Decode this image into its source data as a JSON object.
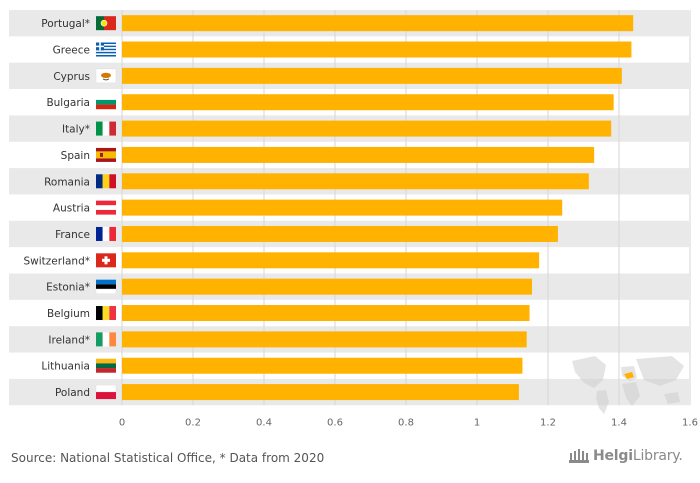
{
  "chart_data": {
    "type": "bar",
    "orientation": "horizontal",
    "categories": [
      "Portugal*",
      "Greece",
      "Cyprus",
      "Bulgaria",
      "Italy*",
      "Spain",
      "Romania",
      "Austria",
      "France",
      "Switzerland*",
      "Estonia*",
      "Belgium",
      "Ireland*",
      "Lithuania",
      "Poland"
    ],
    "values": [
      1.44,
      1.435,
      1.408,
      1.385,
      1.378,
      1.33,
      1.315,
      1.24,
      1.228,
      1.175,
      1.155,
      1.148,
      1.14,
      1.128,
      1.118
    ],
    "xlim": [
      0,
      1.6
    ],
    "x_ticks": [
      "0",
      "0.2",
      "0.4",
      "0.6",
      "0.8",
      "1",
      "1.2",
      "1.4",
      "1.6"
    ],
    "bar_color": "#FFB300",
    "grid": true,
    "category_band_color": "#E9E9E9",
    "flag_icons": [
      "portugal-flag-icon",
      "greece-flag-icon",
      "cyprus-flag-icon",
      "bulgaria-flag-icon",
      "italy-flag-icon",
      "spain-flag-icon",
      "romania-flag-icon",
      "austria-flag-icon",
      "france-flag-icon",
      "switzerland-flag-icon",
      "estonia-flag-icon",
      "belgium-flag-icon",
      "ireland-flag-icon",
      "lithuania-flag-icon",
      "poland-flag-icon"
    ]
  },
  "footer": {
    "source": "Source: National Statistical Office, * Data from 2020"
  },
  "logo": {
    "name_bold": "Helgi",
    "name_rest": "Library."
  }
}
